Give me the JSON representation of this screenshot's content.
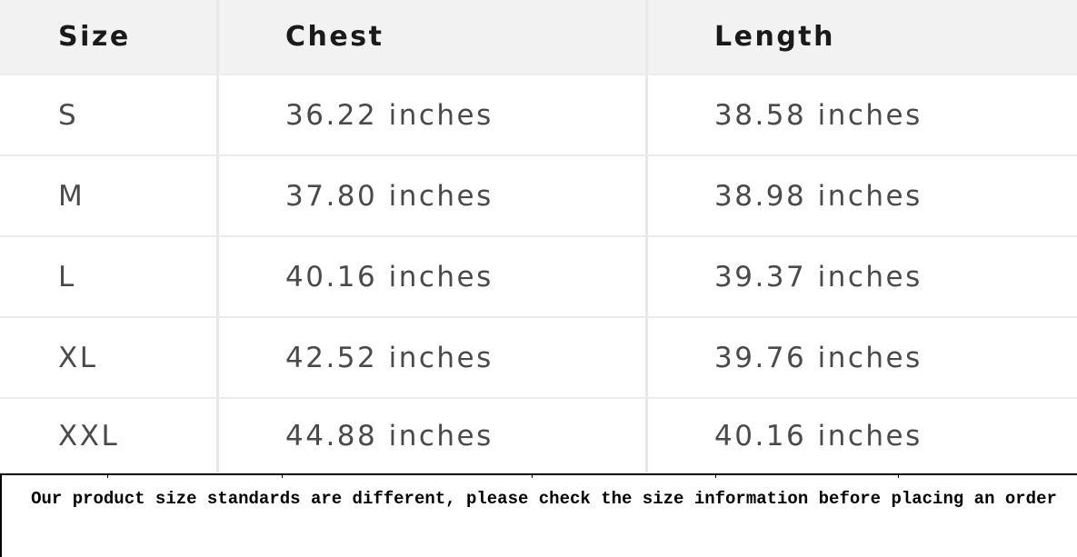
{
  "table": {
    "headers": [
      "Size",
      "Chest",
      "Length"
    ],
    "rows": [
      [
        "S",
        "36.22 inches",
        "38.58 inches"
      ],
      [
        "M",
        "37.80 inches",
        "38.98 inches"
      ],
      [
        "L",
        "40.16 inches",
        "39.37 inches"
      ],
      [
        "XL",
        "42.52 inches",
        "39.76 inches"
      ],
      [
        "XXL",
        "44.88 inches",
        "40.16 inches"
      ]
    ]
  },
  "note": "Our product size standards are different, please check the size information before placing an order"
}
